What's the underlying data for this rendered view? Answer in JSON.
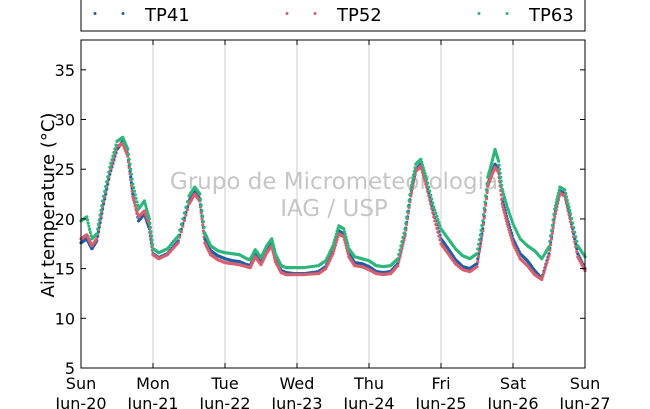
{
  "chart_data": {
    "type": "scatter",
    "ylabel": "Air temperature (°C)",
    "ylim": [
      5,
      38
    ],
    "yticks": [
      5,
      10,
      15,
      20,
      25,
      30,
      35
    ],
    "xlim": [
      0,
      7
    ],
    "grid": "vertical",
    "legend_position": "top",
    "x_tick_labels": [
      {
        "x": 0,
        "day": "Sun",
        "date": "Jun-20"
      },
      {
        "x": 1,
        "day": "Mon",
        "date": "Jun-21"
      },
      {
        "x": 2,
        "day": "Tue",
        "date": "Jun-22"
      },
      {
        "x": 3,
        "day": "Wed",
        "date": "Jun-23"
      },
      {
        "x": 4,
        "day": "Thu",
        "date": "Jun-24"
      },
      {
        "x": 5,
        "day": "Fri",
        "date": "Jun-25"
      },
      {
        "x": 6,
        "day": "Sat",
        "date": "Jun-26"
      },
      {
        "x": 7,
        "day": "Sun",
        "date": "Jun-27"
      }
    ],
    "watermark": [
      "Grupo de Micrometeorologia",
      "IAG / USP"
    ],
    "series": [
      {
        "name": "TP41",
        "color": "#1f5fa8",
        "x": [
          0,
          0.08,
          0.15,
          0.22,
          0.3,
          0.4,
          0.5,
          0.58,
          0.65,
          0.72,
          0.8,
          0.88,
          0.95,
          1.0,
          1.08,
          1.2,
          1.35,
          1.5,
          1.58,
          1.65,
          1.72,
          1.8,
          1.9,
          2.0,
          2.1,
          2.2,
          2.3,
          2.35,
          2.42,
          2.5,
          2.58,
          2.65,
          2.7,
          2.78,
          2.85,
          2.95,
          3.1,
          3.3,
          3.4,
          3.5,
          3.58,
          3.65,
          3.72,
          3.8,
          3.9,
          4.0,
          4.1,
          4.2,
          4.3,
          4.4,
          4.5,
          4.58,
          4.65,
          4.72,
          4.8,
          4.9,
          5.0,
          5.1,
          5.2,
          5.3,
          5.4,
          5.5,
          5.58,
          5.65,
          5.7,
          5.75,
          5.8,
          5.85,
          5.92,
          6.0,
          6.1,
          6.2,
          6.3,
          6.4,
          6.5,
          6.58,
          6.65,
          6.72,
          6.8,
          6.9,
          7.0
        ],
        "y": [
          17.6,
          18.0,
          17.0,
          17.8,
          21.0,
          24.5,
          27.0,
          27.8,
          26.5,
          22.5,
          19.8,
          20.5,
          19.0,
          16.5,
          16.1,
          16.5,
          17.8,
          21.8,
          22.8,
          22.0,
          18.0,
          16.8,
          16.3,
          16.0,
          15.8,
          15.7,
          15.4,
          15.3,
          16.4,
          15.6,
          16.8,
          17.5,
          16.0,
          14.8,
          14.6,
          14.5,
          14.5,
          14.7,
          15.2,
          16.8,
          18.8,
          18.5,
          16.5,
          15.6,
          15.5,
          15.2,
          14.7,
          14.6,
          14.7,
          15.5,
          18.5,
          22.5,
          25.0,
          25.5,
          23.5,
          20.5,
          18.0,
          17.0,
          15.9,
          15.2,
          15.0,
          15.5,
          19.0,
          23.5,
          24.5,
          25.5,
          25.0,
          22.0,
          20.0,
          18.0,
          16.5,
          15.8,
          14.8,
          14.0,
          16.5,
          20.5,
          22.8,
          22.5,
          20.0,
          16.5,
          15.0
        ]
      },
      {
        "name": "TP52",
        "color": "#d95f6e",
        "x": [
          0,
          0.08,
          0.15,
          0.22,
          0.3,
          0.4,
          0.5,
          0.58,
          0.65,
          0.72,
          0.8,
          0.88,
          0.95,
          1.0,
          1.08,
          1.2,
          1.35,
          1.5,
          1.58,
          1.65,
          1.72,
          1.8,
          1.9,
          2.0,
          2.1,
          2.2,
          2.3,
          2.35,
          2.42,
          2.5,
          2.58,
          2.65,
          2.7,
          2.78,
          2.85,
          2.95,
          3.1,
          3.3,
          3.4,
          3.5,
          3.58,
          3.65,
          3.72,
          3.8,
          3.9,
          4.0,
          4.1,
          4.2,
          4.3,
          4.4,
          4.5,
          4.58,
          4.65,
          4.72,
          4.8,
          4.9,
          5.0,
          5.1,
          5.2,
          5.3,
          5.4,
          5.5,
          5.58,
          5.65,
          5.7,
          5.75,
          5.8,
          5.85,
          5.92,
          6.0,
          6.1,
          6.2,
          6.3,
          6.4,
          6.5,
          6.58,
          6.65,
          6.72,
          6.8,
          6.9,
          7.0
        ],
        "y": [
          18.0,
          18.4,
          17.3,
          18.0,
          21.2,
          24.7,
          27.3,
          27.6,
          26.3,
          22.2,
          20.2,
          20.8,
          19.5,
          16.4,
          16.0,
          16.4,
          17.6,
          21.5,
          22.5,
          21.8,
          17.6,
          16.4,
          15.9,
          15.6,
          15.5,
          15.4,
          15.2,
          15.1,
          16.2,
          15.4,
          16.6,
          17.3,
          15.7,
          14.6,
          14.4,
          14.4,
          14.4,
          14.5,
          15.0,
          16.5,
          18.5,
          18.2,
          16.2,
          15.3,
          15.2,
          14.9,
          14.5,
          14.4,
          14.5,
          15.3,
          18.3,
          22.3,
          24.8,
          25.3,
          23.2,
          20.2,
          17.5,
          16.5,
          15.5,
          14.9,
          14.7,
          15.2,
          18.8,
          23.3,
          24.3,
          25.2,
          24.7,
          21.5,
          19.5,
          17.5,
          16.0,
          15.3,
          14.4,
          13.9,
          16.3,
          20.2,
          22.6,
          22.3,
          19.7,
          16.2,
          14.8
        ]
      },
      {
        "name": "TP63",
        "color": "#2eb67a",
        "x": [
          0,
          0.08,
          0.15,
          0.22,
          0.3,
          0.4,
          0.5,
          0.58,
          0.65,
          0.72,
          0.8,
          0.88,
          0.95,
          1.0,
          1.08,
          1.2,
          1.35,
          1.5,
          1.58,
          1.65,
          1.72,
          1.8,
          1.9,
          2.0,
          2.1,
          2.2,
          2.3,
          2.35,
          2.42,
          2.5,
          2.58,
          2.65,
          2.7,
          2.78,
          2.85,
          2.95,
          3.1,
          3.3,
          3.4,
          3.5,
          3.58,
          3.65,
          3.72,
          3.8,
          3.9,
          4.0,
          4.1,
          4.2,
          4.3,
          4.4,
          4.5,
          4.58,
          4.65,
          4.72,
          4.8,
          4.9,
          5.0,
          5.1,
          5.2,
          5.3,
          5.4,
          5.5,
          5.58,
          5.65,
          5.7,
          5.75,
          5.8,
          5.85,
          5.92,
          6.0,
          6.1,
          6.2,
          6.3,
          6.4,
          6.5,
          6.58,
          6.65,
          6.72,
          6.8,
          6.9,
          7.0
        ],
        "y": [
          19.8,
          20.2,
          18.0,
          18.5,
          21.8,
          25.2,
          27.8,
          28.2,
          27.0,
          23.5,
          21.0,
          21.8,
          20.0,
          17.0,
          16.6,
          17.0,
          18.3,
          22.3,
          23.2,
          22.5,
          18.6,
          17.3,
          16.8,
          16.6,
          16.5,
          16.4,
          16.0,
          15.9,
          16.9,
          16.1,
          17.3,
          18.0,
          16.5,
          15.3,
          15.1,
          15.1,
          15.1,
          15.3,
          15.8,
          17.3,
          19.3,
          19.0,
          17.0,
          16.2,
          16.0,
          15.8,
          15.3,
          15.2,
          15.3,
          16.0,
          19.0,
          23.0,
          25.5,
          26.0,
          24.0,
          21.2,
          19.0,
          18.0,
          17.0,
          16.3,
          16.0,
          16.5,
          19.8,
          24.2,
          25.5,
          27.0,
          25.8,
          23.0,
          21.2,
          19.5,
          18.0,
          17.3,
          16.8,
          16.0,
          17.2,
          21.0,
          23.2,
          22.9,
          20.5,
          17.3,
          16.2
        ]
      }
    ]
  }
}
